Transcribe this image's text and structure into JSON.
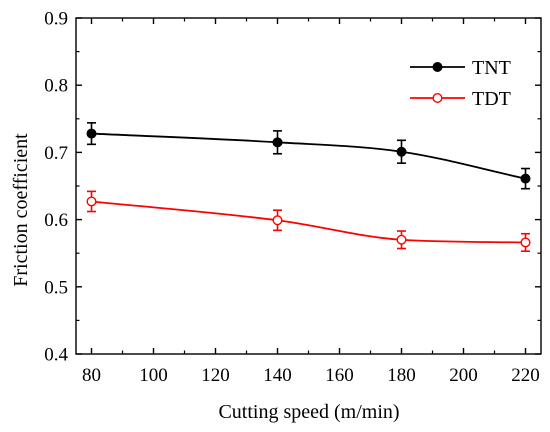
{
  "chart_data": {
    "type": "line",
    "xlabel": "Cutting speed (m/min)",
    "ylabel": "Friction coefficient",
    "xlim": [
      75,
      225
    ],
    "ylim": [
      0.4,
      0.9
    ],
    "x_ticks": [
      80,
      100,
      120,
      140,
      160,
      180,
      200,
      220
    ],
    "y_ticks": [
      0.4,
      0.5,
      0.6,
      0.7,
      0.8,
      0.9
    ],
    "x_tick_labels": [
      "80",
      "100",
      "120",
      "140",
      "160",
      "180",
      "200",
      "220"
    ],
    "y_tick_labels": [
      "0.4",
      "0.5",
      "0.6",
      "0.7",
      "0.8",
      "0.9"
    ],
    "legend_position": "top-right",
    "grid": false,
    "series": [
      {
        "name": "TNT",
        "color": "#000000",
        "marker": "filled-circle",
        "x": [
          80,
          140,
          180,
          220
        ],
        "y": [
          0.728,
          0.715,
          0.701,
          0.661
        ],
        "error": [
          0.016,
          0.017,
          0.017,
          0.015
        ]
      },
      {
        "name": "TDT",
        "color": "#ff0000",
        "marker": "open-circle",
        "x": [
          80,
          140,
          180,
          220
        ],
        "y": [
          0.627,
          0.599,
          0.57,
          0.566
        ],
        "error": [
          0.015,
          0.015,
          0.013,
          0.013
        ]
      }
    ]
  }
}
